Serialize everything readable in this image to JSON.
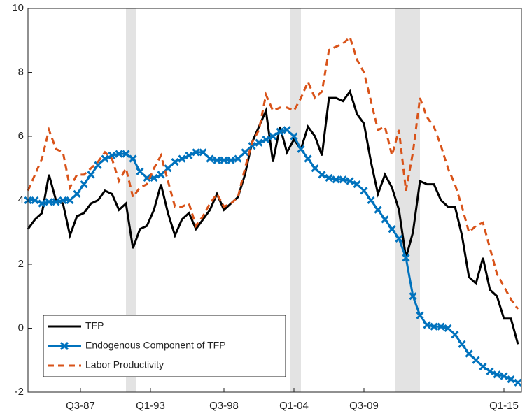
{
  "chart_data": {
    "type": "line",
    "x": [
      0,
      2,
      4,
      6,
      8,
      10,
      12,
      14,
      16,
      18,
      20,
      22,
      24,
      26,
      28,
      30,
      32,
      34,
      36,
      38,
      40,
      42,
      44,
      46,
      48,
      50,
      52,
      54,
      56,
      58,
      60,
      62,
      64,
      66,
      68,
      70,
      72,
      74,
      76,
      78,
      80,
      82,
      84,
      86,
      88,
      90,
      92,
      94,
      96,
      98,
      100,
      102,
      104,
      106,
      108,
      110,
      112,
      114,
      116,
      118,
      120,
      122,
      124,
      126,
      128,
      130,
      132,
      134,
      136,
      138,
      140
    ],
    "series": [
      {
        "name": "TFP",
        "color": "#000000",
        "dash": false,
        "marker": null,
        "values": [
          3.1,
          3.4,
          3.6,
          4.8,
          4.0,
          3.9,
          2.9,
          3.5,
          3.6,
          3.9,
          4.0,
          4.3,
          4.2,
          3.7,
          3.9,
          2.5,
          3.1,
          3.2,
          3.7,
          4.5,
          3.6,
          2.9,
          3.4,
          3.6,
          3.1,
          3.4,
          3.7,
          4.2,
          3.7,
          3.9,
          4.1,
          4.8,
          5.8,
          6.3,
          6.8,
          5.2,
          6.3,
          5.5,
          5.9,
          5.6,
          6.3,
          6.0,
          5.4,
          7.2,
          7.2,
          7.1,
          7.4,
          6.7,
          6.4,
          5.2,
          4.2,
          4.8,
          4.4,
          3.7,
          2.2,
          3.0,
          4.6,
          4.5,
          4.5,
          4.0,
          3.8,
          3.8,
          2.9,
          1.6,
          1.4,
          2.2,
          1.2,
          1.0,
          0.3,
          0.3,
          -0.5
        ]
      },
      {
        "name": "Endogenous Component of TFP",
        "color": "#0072bd",
        "dash": false,
        "marker": "x",
        "values": [
          4.0,
          4.0,
          3.9,
          3.95,
          3.95,
          4.0,
          4.0,
          4.2,
          4.5,
          4.8,
          5.1,
          5.3,
          5.4,
          5.45,
          5.45,
          5.3,
          4.9,
          4.7,
          4.7,
          4.8,
          5.0,
          5.2,
          5.3,
          5.4,
          5.5,
          5.5,
          5.3,
          5.25,
          5.25,
          5.25,
          5.3,
          5.5,
          5.7,
          5.8,
          5.9,
          6.0,
          6.15,
          6.2,
          6.0,
          5.6,
          5.3,
          5.0,
          4.8,
          4.7,
          4.65,
          4.65,
          4.6,
          4.5,
          4.3,
          4.0,
          3.7,
          3.4,
          3.1,
          2.8,
          2.2,
          1.0,
          0.4,
          0.1,
          0.05,
          0.05,
          0.0,
          -0.2,
          -0.5,
          -0.8,
          -1.0,
          -1.2,
          -1.35,
          -1.45,
          -1.5,
          -1.6,
          -1.7
        ]
      },
      {
        "name": "Labor Productivity",
        "color": "#d95319",
        "dash": true,
        "marker": null,
        "values": [
          4.3,
          4.8,
          5.3,
          6.2,
          5.6,
          5.5,
          4.4,
          4.8,
          4.8,
          5.0,
          5.2,
          5.5,
          5.3,
          4.6,
          5.0,
          4.1,
          4.4,
          4.5,
          5.0,
          5.4,
          4.6,
          3.8,
          3.8,
          3.9,
          3.2,
          3.5,
          3.9,
          4.2,
          3.8,
          3.9,
          4.1,
          5.0,
          5.8,
          6.2,
          7.3,
          6.8,
          6.9,
          6.9,
          6.8,
          7.2,
          7.7,
          7.2,
          7.4,
          8.7,
          8.8,
          8.9,
          9.1,
          8.4,
          8.0,
          7.1,
          6.2,
          6.3,
          5.4,
          6.2,
          4.3,
          5.5,
          7.2,
          6.6,
          6.3,
          5.7,
          5.0,
          4.5,
          3.8,
          3.0,
          3.2,
          3.3,
          2.5,
          1.7,
          1.3,
          0.9,
          0.6
        ]
      }
    ],
    "shaded": [
      [
        28,
        31
      ],
      [
        75,
        78
      ],
      [
        105,
        112
      ]
    ],
    "xlim": [
      0,
      141
    ],
    "xticks": [
      {
        "value": 15,
        "label": "Q3-87"
      },
      {
        "value": 35,
        "label": "Q1-93"
      },
      {
        "value": 56,
        "label": "Q3-98"
      },
      {
        "value": 76,
        "label": "Q1-04"
      },
      {
        "value": 96,
        "label": "Q3-09"
      },
      {
        "value": 136,
        "label": "Q1-15"
      }
    ],
    "ylim": [
      -2,
      10
    ],
    "yticks": [
      -2,
      0,
      2,
      4,
      6,
      8,
      10
    ],
    "legend": "lower left"
  }
}
